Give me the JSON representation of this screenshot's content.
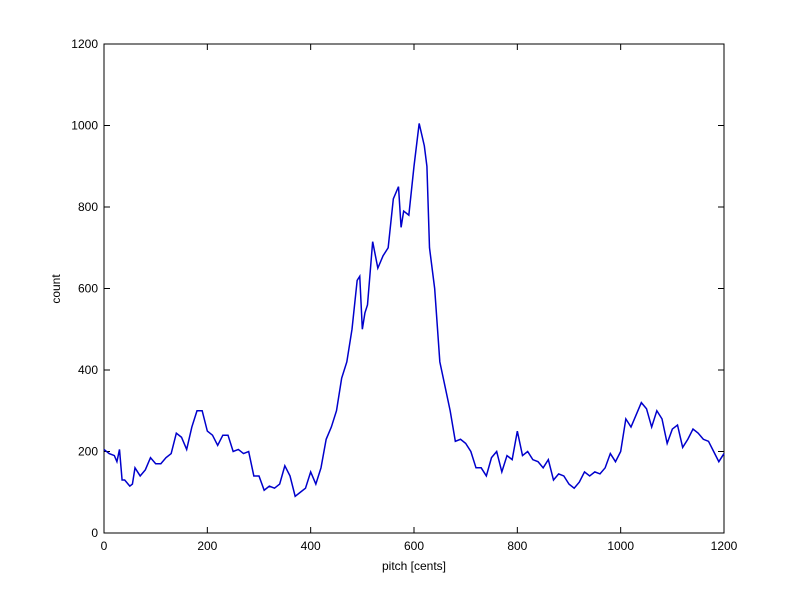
{
  "chart_data": {
    "type": "line",
    "xlabel": "pitch [cents]",
    "ylabel": "count",
    "x": [
      0,
      10,
      20,
      25,
      30,
      35,
      40,
      50,
      55,
      60,
      70,
      80,
      90,
      100,
      110,
      120,
      130,
      140,
      150,
      160,
      170,
      180,
      190,
      200,
      210,
      220,
      230,
      240,
      250,
      260,
      270,
      280,
      290,
      300,
      310,
      320,
      330,
      340,
      350,
      360,
      370,
      380,
      390,
      400,
      410,
      420,
      430,
      440,
      450,
      460,
      470,
      480,
      490,
      495,
      500,
      505,
      510,
      520,
      530,
      540,
      550,
      560,
      570,
      575,
      580,
      590,
      600,
      610,
      620,
      625,
      630,
      640,
      650,
      660,
      670,
      680,
      690,
      700,
      710,
      720,
      730,
      740,
      750,
      760,
      770,
      780,
      790,
      800,
      810,
      820,
      830,
      840,
      850,
      860,
      870,
      880,
      890,
      900,
      910,
      920,
      930,
      940,
      950,
      960,
      970,
      980,
      990,
      1000,
      1010,
      1020,
      1030,
      1040,
      1050,
      1060,
      1070,
      1080,
      1090,
      1100,
      1110,
      1120,
      1130,
      1140,
      1150,
      1160,
      1170,
      1180,
      1190,
      1200
    ],
    "series": [
      {
        "name": "count",
        "color": "#0000cc",
        "values": [
          205,
          195,
          190,
          175,
          205,
          130,
          130,
          115,
          120,
          160,
          140,
          155,
          185,
          170,
          170,
          185,
          195,
          245,
          235,
          205,
          260,
          300,
          300,
          250,
          240,
          215,
          240,
          240,
          200,
          205,
          195,
          200,
          140,
          140,
          105,
          115,
          110,
          120,
          165,
          140,
          90,
          100,
          110,
          150,
          120,
          160,
          230,
          260,
          300,
          380,
          420,
          500,
          620,
          630,
          500,
          540,
          560,
          715,
          650,
          680,
          700,
          820,
          850,
          750,
          790,
          780,
          900,
          1005,
          950,
          900,
          700,
          600,
          420,
          360,
          300,
          225,
          230,
          220,
          200,
          160,
          160,
          140,
          185,
          200,
          150,
          190,
          180,
          250,
          190,
          200,
          180,
          175,
          160,
          180,
          130,
          145,
          140,
          120,
          110,
          125,
          150,
          140,
          150,
          145,
          160,
          195,
          175,
          200,
          280,
          260,
          290,
          320,
          305,
          260,
          300,
          280,
          220,
          255,
          265,
          210,
          230,
          255,
          245,
          230,
          225,
          200,
          175,
          195
        ]
      }
    ],
    "xlim": [
      0,
      1200
    ],
    "ylim": [
      0,
      1200
    ],
    "xticks": [
      0,
      200,
      400,
      600,
      800,
      1000,
      1200
    ],
    "yticks": [
      0,
      200,
      400,
      600,
      800,
      1000,
      1200
    ],
    "grid": false
  }
}
